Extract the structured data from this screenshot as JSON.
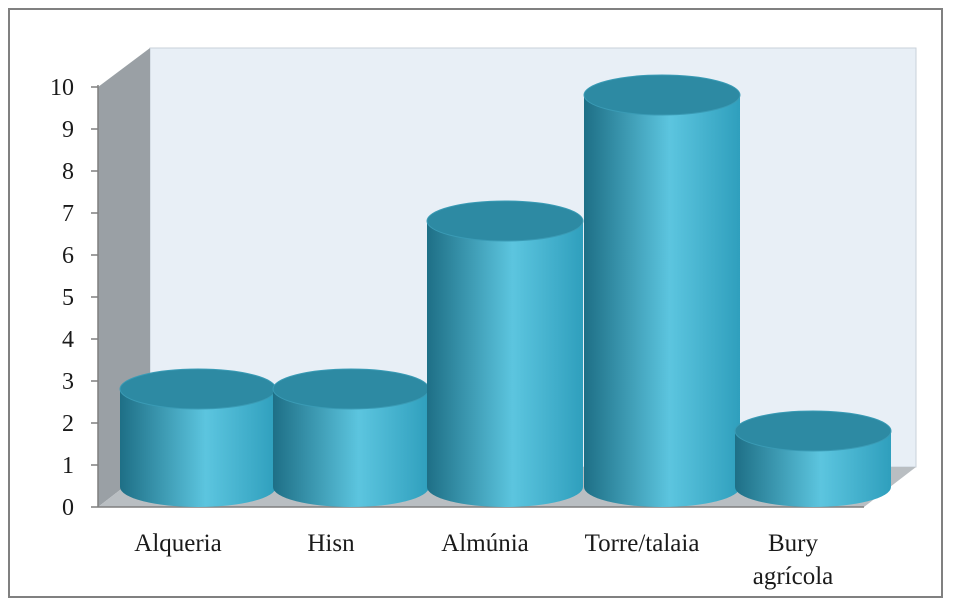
{
  "chart_data": {
    "type": "bar",
    "style": "3d-cylinder",
    "categories": [
      "Alqueria",
      "Hisn",
      "Almúnia",
      "Torre/talaia",
      "Bury agrícola"
    ],
    "category_label_lines": [
      [
        "Alqueria"
      ],
      [
        "Hisn"
      ],
      [
        "Almúnia"
      ],
      [
        "Torre/talaia"
      ],
      [
        "Bury",
        "agrícola"
      ]
    ],
    "values": [
      3,
      3,
      7,
      10,
      2
    ],
    "yticks": [
      "0",
      "1",
      "2",
      "3",
      "4",
      "5",
      "6",
      "7",
      "8",
      "9",
      "10"
    ],
    "ylim": [
      0,
      10
    ],
    "grid": false,
    "legend": "none",
    "colors": {
      "bar_body": "#2f9fbd",
      "bar_highlight": "#5cc5df",
      "bar_dark": "#1e6f86",
      "bar_top": "#2d8aa3",
      "back_wall": "#e8eff6",
      "side_wall": "#9aa0a5",
      "floor": "#b9bec2"
    }
  }
}
